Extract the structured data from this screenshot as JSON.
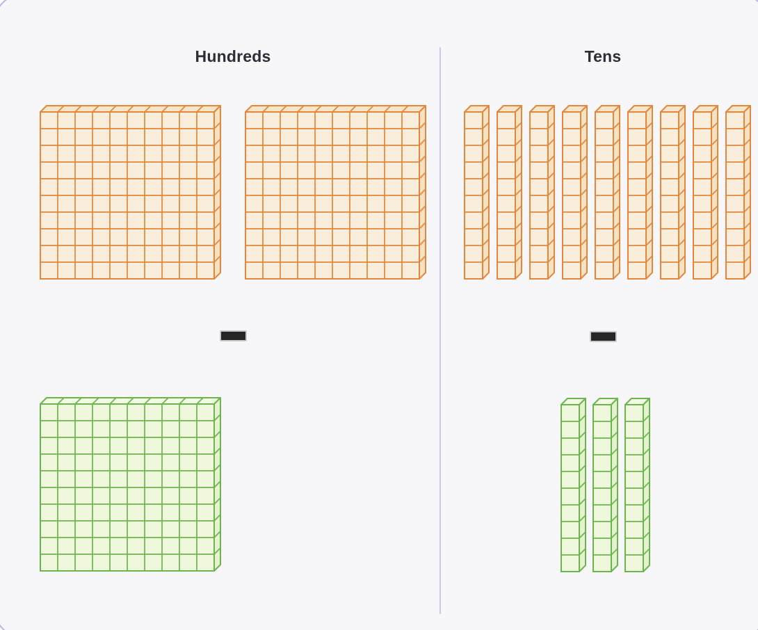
{
  "workspace": {
    "columns": [
      {
        "id": "hundreds",
        "label": "Hundreds",
        "block_type": "hundred-flat",
        "grid": {
          "rows": 10,
          "cols": 10
        },
        "top_group": {
          "count": 2,
          "color_name": "orange"
        },
        "operator": "minus",
        "bottom_group": {
          "count": 1,
          "color_name": "green"
        }
      },
      {
        "id": "tens",
        "label": "Tens",
        "block_type": "ten-rod",
        "grid": {
          "rows": 10,
          "cols": 1
        },
        "top_group": {
          "count": 9,
          "color_name": "orange"
        },
        "operator": "minus",
        "bottom_group": {
          "count": 3,
          "color_name": "green"
        }
      }
    ],
    "palette": {
      "orange": {
        "stroke": "#E2873B",
        "front": "#F9EEDB",
        "top": "#F6E6C9",
        "side": "#F5E2C2"
      },
      "green": {
        "stroke": "#6BB54D",
        "front": "#EFF7DC",
        "top": "#F3FAE4",
        "side": "#E6F2CF"
      },
      "minus_fill": "#262626",
      "minus_border": "#C9C9C9",
      "card_background": "#F7F7F9",
      "card_border": "#B9B4E8",
      "page_background": "#FDFDFE",
      "divider": "#CBC8F0",
      "label_text": "#2B2E36"
    }
  }
}
